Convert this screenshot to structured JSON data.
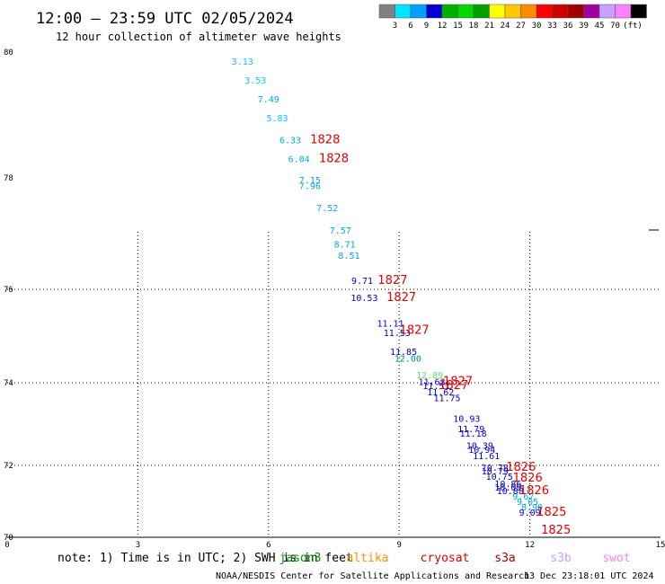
{
  "chart_data": {
    "type": "scatter",
    "title": "12:00 – 23:59 UTC 02/05/2024",
    "subtitle": "12 hour collection of altimeter wave heights",
    "xlim": [
      0,
      15
    ],
    "ylim": [
      70,
      80
    ],
    "x_ticks": [
      "0",
      "3",
      "6",
      "9",
      "12",
      "15"
    ],
    "y_ticks": [
      "70",
      "72",
      "74",
      "76",
      "78",
      "80"
    ],
    "grid": true,
    "color_scale": {
      "labels": [
        "3",
        "6",
        "9",
        "12",
        "15",
        "18",
        "21",
        "24",
        "27",
        "30",
        "33",
        "36",
        "39",
        "45",
        "70"
      ],
      "unit": "(ft)",
      "colors": [
        "#808080",
        "#00e5ff",
        "#00a0ff",
        "#0000d0",
        "#00b000",
        "#00d800",
        "#00a000",
        "#ffff00",
        "#ffc800",
        "#ff8c00",
        "#ff0000",
        "#d00000",
        "#a00000",
        "#a000a0",
        "#c8a0ff",
        "#ff80ff",
        "#000000"
      ]
    },
    "series": [
      {
        "name": "jason3",
        "color": "#00b0e0",
        "points": [
          {
            "x": 5.4,
            "y": 79.8,
            "v": "3.13",
            "c": "#00c8ff"
          },
          {
            "x": 5.7,
            "y": 79.5,
            "v": "3.53",
            "c": "#00c8ff"
          },
          {
            "x": 6.0,
            "y": 79.2,
            "v": "7.49",
            "c": "#00a8e8"
          },
          {
            "x": 6.2,
            "y": 78.9,
            "v": "5.83",
            "c": "#00c8ff"
          },
          {
            "x": 6.5,
            "y": 78.55,
            "v": "6.33",
            "c": "#00a8e8"
          },
          {
            "x": 6.7,
            "y": 78.25,
            "v": "6.04",
            "c": "#00a8e8"
          },
          {
            "x": 6.95,
            "y": 77.9,
            "v": "7.15",
            "c": "#00a8e8"
          },
          {
            "x": 6.95,
            "y": 77.8,
            "v": "7.96",
            "c": "#00a8e8"
          },
          {
            "x": 7.35,
            "y": 77.4,
            "v": "7.52",
            "c": "#00a8e8"
          },
          {
            "x": 7.65,
            "y": 77.0,
            "v": "7.57",
            "c": "#00a8e8"
          },
          {
            "x": 7.75,
            "y": 76.75,
            "v": "8.71",
            "c": "#00a8e8"
          },
          {
            "x": 7.85,
            "y": 76.55,
            "v": "8.51",
            "c": "#00a8e8"
          },
          {
            "x": 11.85,
            "y": 71.05,
            "v": "9.67",
            "c": "#00a8e8"
          },
          {
            "x": 11.95,
            "y": 70.9,
            "v": "9.05",
            "c": "#00a8e8"
          },
          {
            "x": 12.05,
            "y": 70.75,
            "v": "8.90",
            "c": "#00a8e8"
          }
        ]
      },
      {
        "name": "altika",
        "color": "#0000c8",
        "points": [
          {
            "x": 8.15,
            "y": 76.1,
            "v": "9.71",
            "c": "#0000c8"
          },
          {
            "x": 8.2,
            "y": 75.75,
            "v": "10.53",
            "c": "#0000c8"
          },
          {
            "x": 8.8,
            "y": 75.2,
            "v": "11.11",
            "c": "#0000c8"
          },
          {
            "x": 8.95,
            "y": 75.0,
            "v": "11.53",
            "c": "#0000c8"
          },
          {
            "x": 9.1,
            "y": 74.6,
            "v": "11.85",
            "c": "#0000c8"
          },
          {
            "x": 9.2,
            "y": 74.45,
            "v": "12.00",
            "c": "#009080"
          },
          {
            "x": 9.75,
            "y": 73.95,
            "v": "11.63",
            "c": "#0000c8"
          },
          {
            "x": 9.85,
            "y": 73.85,
            "v": "11.51",
            "c": "#0000c8"
          },
          {
            "x": 9.95,
            "y": 73.7,
            "v": "11.62",
            "c": "#0000c8"
          },
          {
            "x": 10.1,
            "y": 73.55,
            "v": "11.75",
            "c": "#0000c8"
          },
          {
            "x": 10.55,
            "y": 73.05,
            "v": "10.93",
            "c": "#0000c8"
          },
          {
            "x": 10.65,
            "y": 72.8,
            "v": "11.79",
            "c": "#0000c8"
          },
          {
            "x": 10.7,
            "y": 72.7,
            "v": "11.18",
            "c": "#0000c8"
          },
          {
            "x": 10.85,
            "y": 72.4,
            "v": "10.39",
            "c": "#0000c8"
          },
          {
            "x": 10.9,
            "y": 72.3,
            "v": "10.94",
            "c": "#0000c8"
          },
          {
            "x": 11.0,
            "y": 72.15,
            "v": "11.61",
            "c": "#0000c8"
          },
          {
            "x": 11.2,
            "y": 71.85,
            "v": "10.78",
            "c": "#0000c8"
          },
          {
            "x": 11.2,
            "y": 71.75,
            "v": "10.79",
            "c": "#0000c8"
          },
          {
            "x": 11.3,
            "y": 71.6,
            "v": "10.75",
            "c": "#0000c8"
          },
          {
            "x": 11.5,
            "y": 71.4,
            "v": "10.86",
            "c": "#0000c8"
          },
          {
            "x": 11.5,
            "y": 71.3,
            "v": "10.09",
            "c": "#0000c8"
          },
          {
            "x": 11.55,
            "y": 71.2,
            "v": "10.88",
            "c": "#0000c8"
          },
          {
            "x": 12.0,
            "y": 70.6,
            "v": "9.09",
            "c": "#0000c8"
          }
        ]
      },
      {
        "name": "cryosat",
        "color": "#00b000",
        "points": [
          {
            "x": 9.7,
            "y": 74.1,
            "v": "12.89",
            "c": "#60e060"
          }
        ]
      }
    ],
    "pass_labels": [
      {
        "x": 7.3,
        "y": 78.55,
        "v": "1828"
      },
      {
        "x": 7.5,
        "y": 78.25,
        "v": "1828"
      },
      {
        "x": 8.85,
        "y": 76.1,
        "v": "1827"
      },
      {
        "x": 9.05,
        "y": 75.75,
        "v": "1827"
      },
      {
        "x": 9.35,
        "y": 75.05,
        "v": "1827"
      },
      {
        "x": 10.35,
        "y": 73.95,
        "v": "1827"
      },
      {
        "x": 10.25,
        "y": 73.85,
        "v": "1827"
      },
      {
        "x": 11.8,
        "y": 71.85,
        "v": "1826"
      },
      {
        "x": 11.95,
        "y": 71.55,
        "v": "1826"
      },
      {
        "x": 12.1,
        "y": 71.2,
        "v": "1826"
      },
      {
        "x": 12.5,
        "y": 70.6,
        "v": "1825"
      },
      {
        "x": 12.6,
        "y": 70.1,
        "v": "1825"
      }
    ]
  },
  "note": "note: 1) Time is in UTC; 2) SWH is in feet",
  "satellite_legend": [
    {
      "name": "jason3",
      "color": "#009000"
    },
    {
      "name": "altika",
      "color": "#ff9000"
    },
    {
      "name": "cryosat",
      "color": "#e00000"
    },
    {
      "name": "s3a",
      "color": "#a00000"
    },
    {
      "name": "s3b",
      "color": "#c8a0ff"
    },
    {
      "name": "swot",
      "color": "#ff80ff"
    }
  ],
  "footer": {
    "credit": "NOAA/NESDIS Center for Satellite Applications and Research",
    "timestamp": "13 Dec 23:18:01 UTC 2024"
  }
}
